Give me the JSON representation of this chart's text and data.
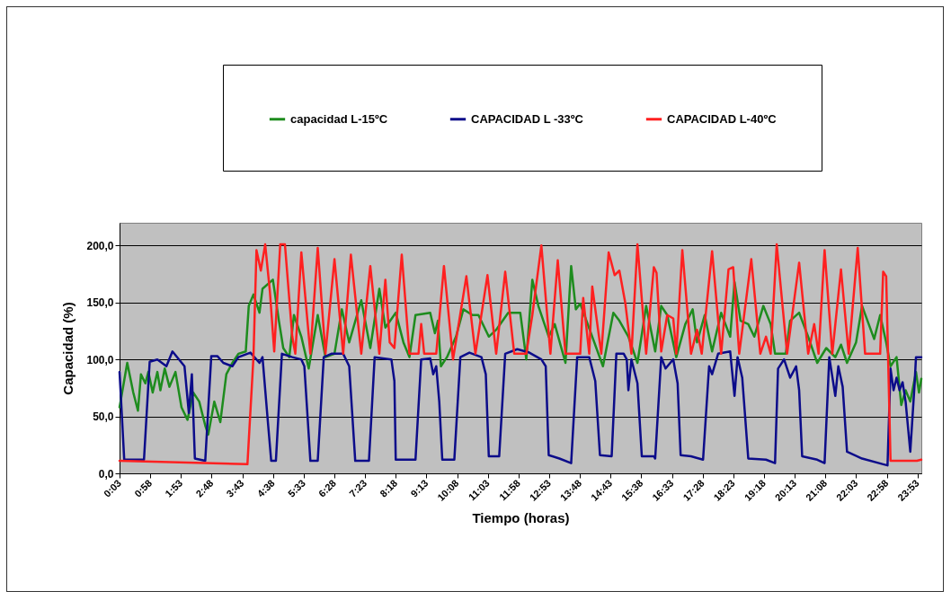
{
  "chart_data": {
    "type": "line",
    "xlabel": "Tiempo (horas)",
    "ylabel": "Capacidad (%)",
    "xlim": [
      0.05,
      24.0
    ],
    "xticks": [
      {
        "value": 0.05,
        "label": "0:03"
      },
      {
        "value": 0.967,
        "label": "0:58"
      },
      {
        "value": 1.883,
        "label": "1:53"
      },
      {
        "value": 2.8,
        "label": "2:48"
      },
      {
        "value": 3.717,
        "label": "3:43"
      },
      {
        "value": 4.633,
        "label": "4:38"
      },
      {
        "value": 5.55,
        "label": "5:33"
      },
      {
        "value": 6.467,
        "label": "6:28"
      },
      {
        "value": 7.383,
        "label": "7:23"
      },
      {
        "value": 8.3,
        "label": "8:18"
      },
      {
        "value": 9.217,
        "label": "9:13"
      },
      {
        "value": 10.133,
        "label": "10:08"
      },
      {
        "value": 11.05,
        "label": "11:03"
      },
      {
        "value": 11.967,
        "label": "11:58"
      },
      {
        "value": 12.883,
        "label": "12:53"
      },
      {
        "value": 13.8,
        "label": "13:48"
      },
      {
        "value": 14.717,
        "label": "14:43"
      },
      {
        "value": 15.633,
        "label": "15:38"
      },
      {
        "value": 16.55,
        "label": "16:33"
      },
      {
        "value": 17.467,
        "label": "17:28"
      },
      {
        "value": 18.383,
        "label": "18:23"
      },
      {
        "value": 19.3,
        "label": "19:18"
      },
      {
        "value": 20.217,
        "label": "20:13"
      },
      {
        "value": 21.133,
        "label": "21:08"
      },
      {
        "value": 22.05,
        "label": "22:03"
      },
      {
        "value": 22.967,
        "label": "22:58"
      },
      {
        "value": 23.883,
        "label": "23:53"
      }
    ],
    "ylim": [
      0,
      220
    ],
    "yticks": [
      {
        "value": 0,
        "label": "0,0"
      },
      {
        "value": 50,
        "label": "50,0"
      },
      {
        "value": 100,
        "label": "100,0"
      },
      {
        "value": 150,
        "label": "150,0"
      },
      {
        "value": 200,
        "label": "200,0"
      }
    ],
    "grid": "y",
    "legend": "top",
    "series": [
      {
        "name": "capacidad L-15ºC",
        "color": "#1e8c1e",
        "x": [
          0.05,
          0.28,
          0.46,
          0.6,
          0.69,
          0.82,
          0.91,
          1.04,
          1.18,
          1.27,
          1.4,
          1.54,
          1.72,
          1.9,
          2.08,
          2.25,
          2.43,
          2.61,
          2.7,
          2.88,
          3.06,
          3.24,
          3.42,
          3.6,
          3.82,
          3.91,
          4.05,
          4.23,
          4.32,
          4.63,
          4.81,
          4.94,
          5.12,
          5.26,
          5.48,
          5.7,
          5.97,
          6.2,
          6.47,
          6.69,
          6.91,
          7.27,
          7.54,
          7.81,
          7.99,
          8.3,
          8.53,
          8.71,
          8.89,
          9.33,
          9.47,
          9.56,
          9.65,
          9.83,
          10.1,
          10.32,
          10.59,
          10.77,
          11.08,
          11.3,
          11.66,
          12.02,
          12.2,
          12.38,
          12.56,
          12.87,
          13.05,
          13.37,
          13.54,
          13.68,
          13.81,
          14.17,
          14.49,
          14.8,
          14.98,
          15.25,
          15.52,
          15.78,
          16.05,
          16.23,
          16.41,
          16.68,
          16.95,
          17.17,
          17.3,
          17.53,
          17.75,
          18.02,
          18.29,
          18.42,
          18.6,
          18.83,
          19.01,
          19.28,
          19.5,
          19.63,
          19.95,
          20.08,
          20.35,
          20.62,
          20.89,
          21.16,
          21.43,
          21.6,
          21.78,
          22.05,
          22.23,
          22.59,
          22.77,
          22.95,
          23.08,
          23.26,
          23.4,
          23.53,
          23.67,
          23.84,
          23.93,
          24.0
        ],
        "values": [
          58,
          97,
          71,
          55,
          87,
          79,
          89,
          71,
          89,
          73,
          92,
          76,
          89,
          58,
          47,
          71,
          63,
          42,
          34,
          63,
          45,
          87,
          97,
          105,
          107,
          147,
          157,
          141,
          162,
          170,
          134,
          110,
          102,
          139,
          120,
          92,
          139,
          102,
          105,
          144,
          115,
          152,
          110,
          162,
          128,
          141,
          115,
          102,
          139,
          141,
          123,
          134,
          94,
          102,
          120,
          144,
          139,
          139,
          120,
          126,
          141,
          141,
          100,
          170,
          147,
          120,
          131,
          97,
          182,
          144,
          149,
          120,
          94,
          141,
          134,
          120,
          97,
          147,
          107,
          147,
          139,
          102,
          131,
          144,
          115,
          139,
          107,
          141,
          120,
          168,
          134,
          131,
          120,
          147,
          131,
          105,
          105,
          134,
          141,
          120,
          97,
          110,
          102,
          113,
          97,
          115,
          147,
          118,
          139,
          115,
          94,
          102,
          60,
          73,
          63,
          89,
          71,
          83
        ]
      },
      {
        "name": "CAPACIDAD L -33ºC",
        "color": "#0c0c8a",
        "x": [
          0.05,
          0.19,
          0.78,
          0.95,
          1.18,
          1.45,
          1.63,
          1.99,
          2.12,
          2.21,
          2.3,
          2.61,
          2.79,
          2.97,
          3.15,
          3.42,
          3.6,
          3.96,
          4.23,
          4.32,
          4.49,
          4.58,
          4.72,
          4.9,
          5.21,
          5.48,
          5.57,
          5.75,
          5.97,
          6.15,
          6.38,
          6.73,
          6.91,
          7.09,
          7.5,
          7.67,
          8.17,
          8.26,
          8.3,
          8.89,
          9.06,
          9.33,
          9.42,
          9.51,
          9.6,
          9.69,
          10.05,
          10.23,
          10.5,
          10.86,
          10.99,
          11.08,
          11.39,
          11.57,
          11.93,
          12.29,
          12.65,
          12.78,
          12.87,
          13.19,
          13.54,
          13.72,
          14.08,
          14.26,
          14.4,
          14.75,
          14.89,
          15.11,
          15.2,
          15.25,
          15.34,
          15.52,
          15.65,
          16.01,
          16.05,
          16.23,
          16.36,
          16.5,
          16.59,
          16.72,
          16.81,
          17.12,
          17.48,
          17.66,
          17.75,
          17.93,
          18.29,
          18.42,
          18.51,
          18.65,
          18.83,
          19.36,
          19.63,
          19.72,
          19.9,
          20.08,
          20.26,
          20.35,
          20.44,
          20.89,
          21.11,
          21.25,
          21.43,
          21.52,
          21.65,
          21.78,
          22.23,
          22.86,
          22.99,
          23.08,
          23.17,
          23.26,
          23.35,
          23.44,
          23.53,
          23.67,
          23.8,
          23.84,
          24.0
        ],
        "values": [
          89,
          12,
          12,
          98,
          100,
          94,
          107,
          94,
          53,
          87,
          13,
          11,
          103,
          103,
          97,
          94,
          102,
          106,
          97,
          102,
          42,
          11,
          11,
          105,
          102,
          100,
          94,
          11,
          11,
          102,
          105,
          105,
          94,
          11,
          11,
          102,
          100,
          81,
          12,
          12,
          100,
          101,
          87,
          94,
          63,
          12,
          12,
          102,
          106,
          102,
          87,
          15,
          15,
          105,
          109,
          106,
          100,
          94,
          16,
          13,
          9,
          102,
          102,
          81,
          16,
          15,
          105,
          105,
          100,
          73,
          100,
          79,
          15,
          15,
          13,
          102,
          92,
          97,
          100,
          79,
          16,
          15,
          12,
          94,
          87,
          105,
          107,
          68,
          102,
          84,
          13,
          12,
          9,
          92,
          100,
          84,
          94,
          73,
          15,
          12,
          9,
          102,
          68,
          94,
          76,
          19,
          13,
          8,
          7,
          92,
          73,
          84,
          73,
          80,
          63,
          19,
          79,
          102,
          102
        ]
      },
      {
        "name": "CAPACIDAD L-40ºC",
        "color": "#ff2020",
        "x": [
          0.05,
          3.87,
          4.05,
          4.14,
          4.27,
          4.4,
          4.54,
          4.67,
          4.85,
          4.99,
          5.21,
          5.3,
          5.48,
          5.75,
          5.97,
          6.2,
          6.47,
          6.73,
          6.96,
          7.27,
          7.54,
          7.81,
          7.99,
          8.12,
          8.26,
          8.48,
          8.71,
          8.98,
          9.06,
          9.15,
          9.51,
          9.74,
          10.01,
          10.41,
          10.68,
          11.04,
          11.3,
          11.57,
          11.84,
          12.2,
          12.38,
          12.65,
          12.92,
          13.14,
          13.37,
          13.81,
          13.9,
          14.08,
          14.17,
          14.44,
          14.66,
          14.84,
          14.98,
          15.16,
          15.34,
          15.52,
          15.78,
          16.01,
          16.09,
          16.23,
          16.41,
          16.59,
          16.68,
          16.86,
          17.12,
          17.3,
          17.44,
          17.75,
          18.02,
          18.24,
          18.38,
          18.56,
          18.92,
          19.19,
          19.36,
          19.5,
          19.68,
          19.99,
          20.35,
          20.62,
          20.8,
          20.93,
          21.11,
          21.34,
          21.6,
          21.83,
          22.1,
          22.32,
          22.77,
          22.86,
          22.95,
          23.08,
          23.87,
          24.0
        ],
        "values": [
          11,
          8,
          102,
          196,
          178,
          201,
          160,
          107,
          201,
          201,
          120,
          105,
          194,
          105,
          198,
          105,
          188,
          105,
          192,
          105,
          182,
          105,
          170,
          115,
          110,
          192,
          105,
          105,
          131,
          105,
          105,
          182,
          100,
          173,
          105,
          174,
          105,
          177,
          105,
          105,
          139,
          200,
          105,
          187,
          105,
          105,
          154,
          105,
          164,
          105,
          194,
          174,
          178,
          149,
          105,
          201,
          105,
          181,
          176,
          107,
          139,
          136,
          105,
          196,
          105,
          126,
          105,
          195,
          105,
          179,
          181,
          105,
          188,
          105,
          120,
          105,
          201,
          105,
          185,
          105,
          131,
          105,
          196,
          105,
          179,
          105,
          198,
          105,
          105,
          177,
          173,
          11,
          11,
          12
        ]
      }
    ]
  }
}
